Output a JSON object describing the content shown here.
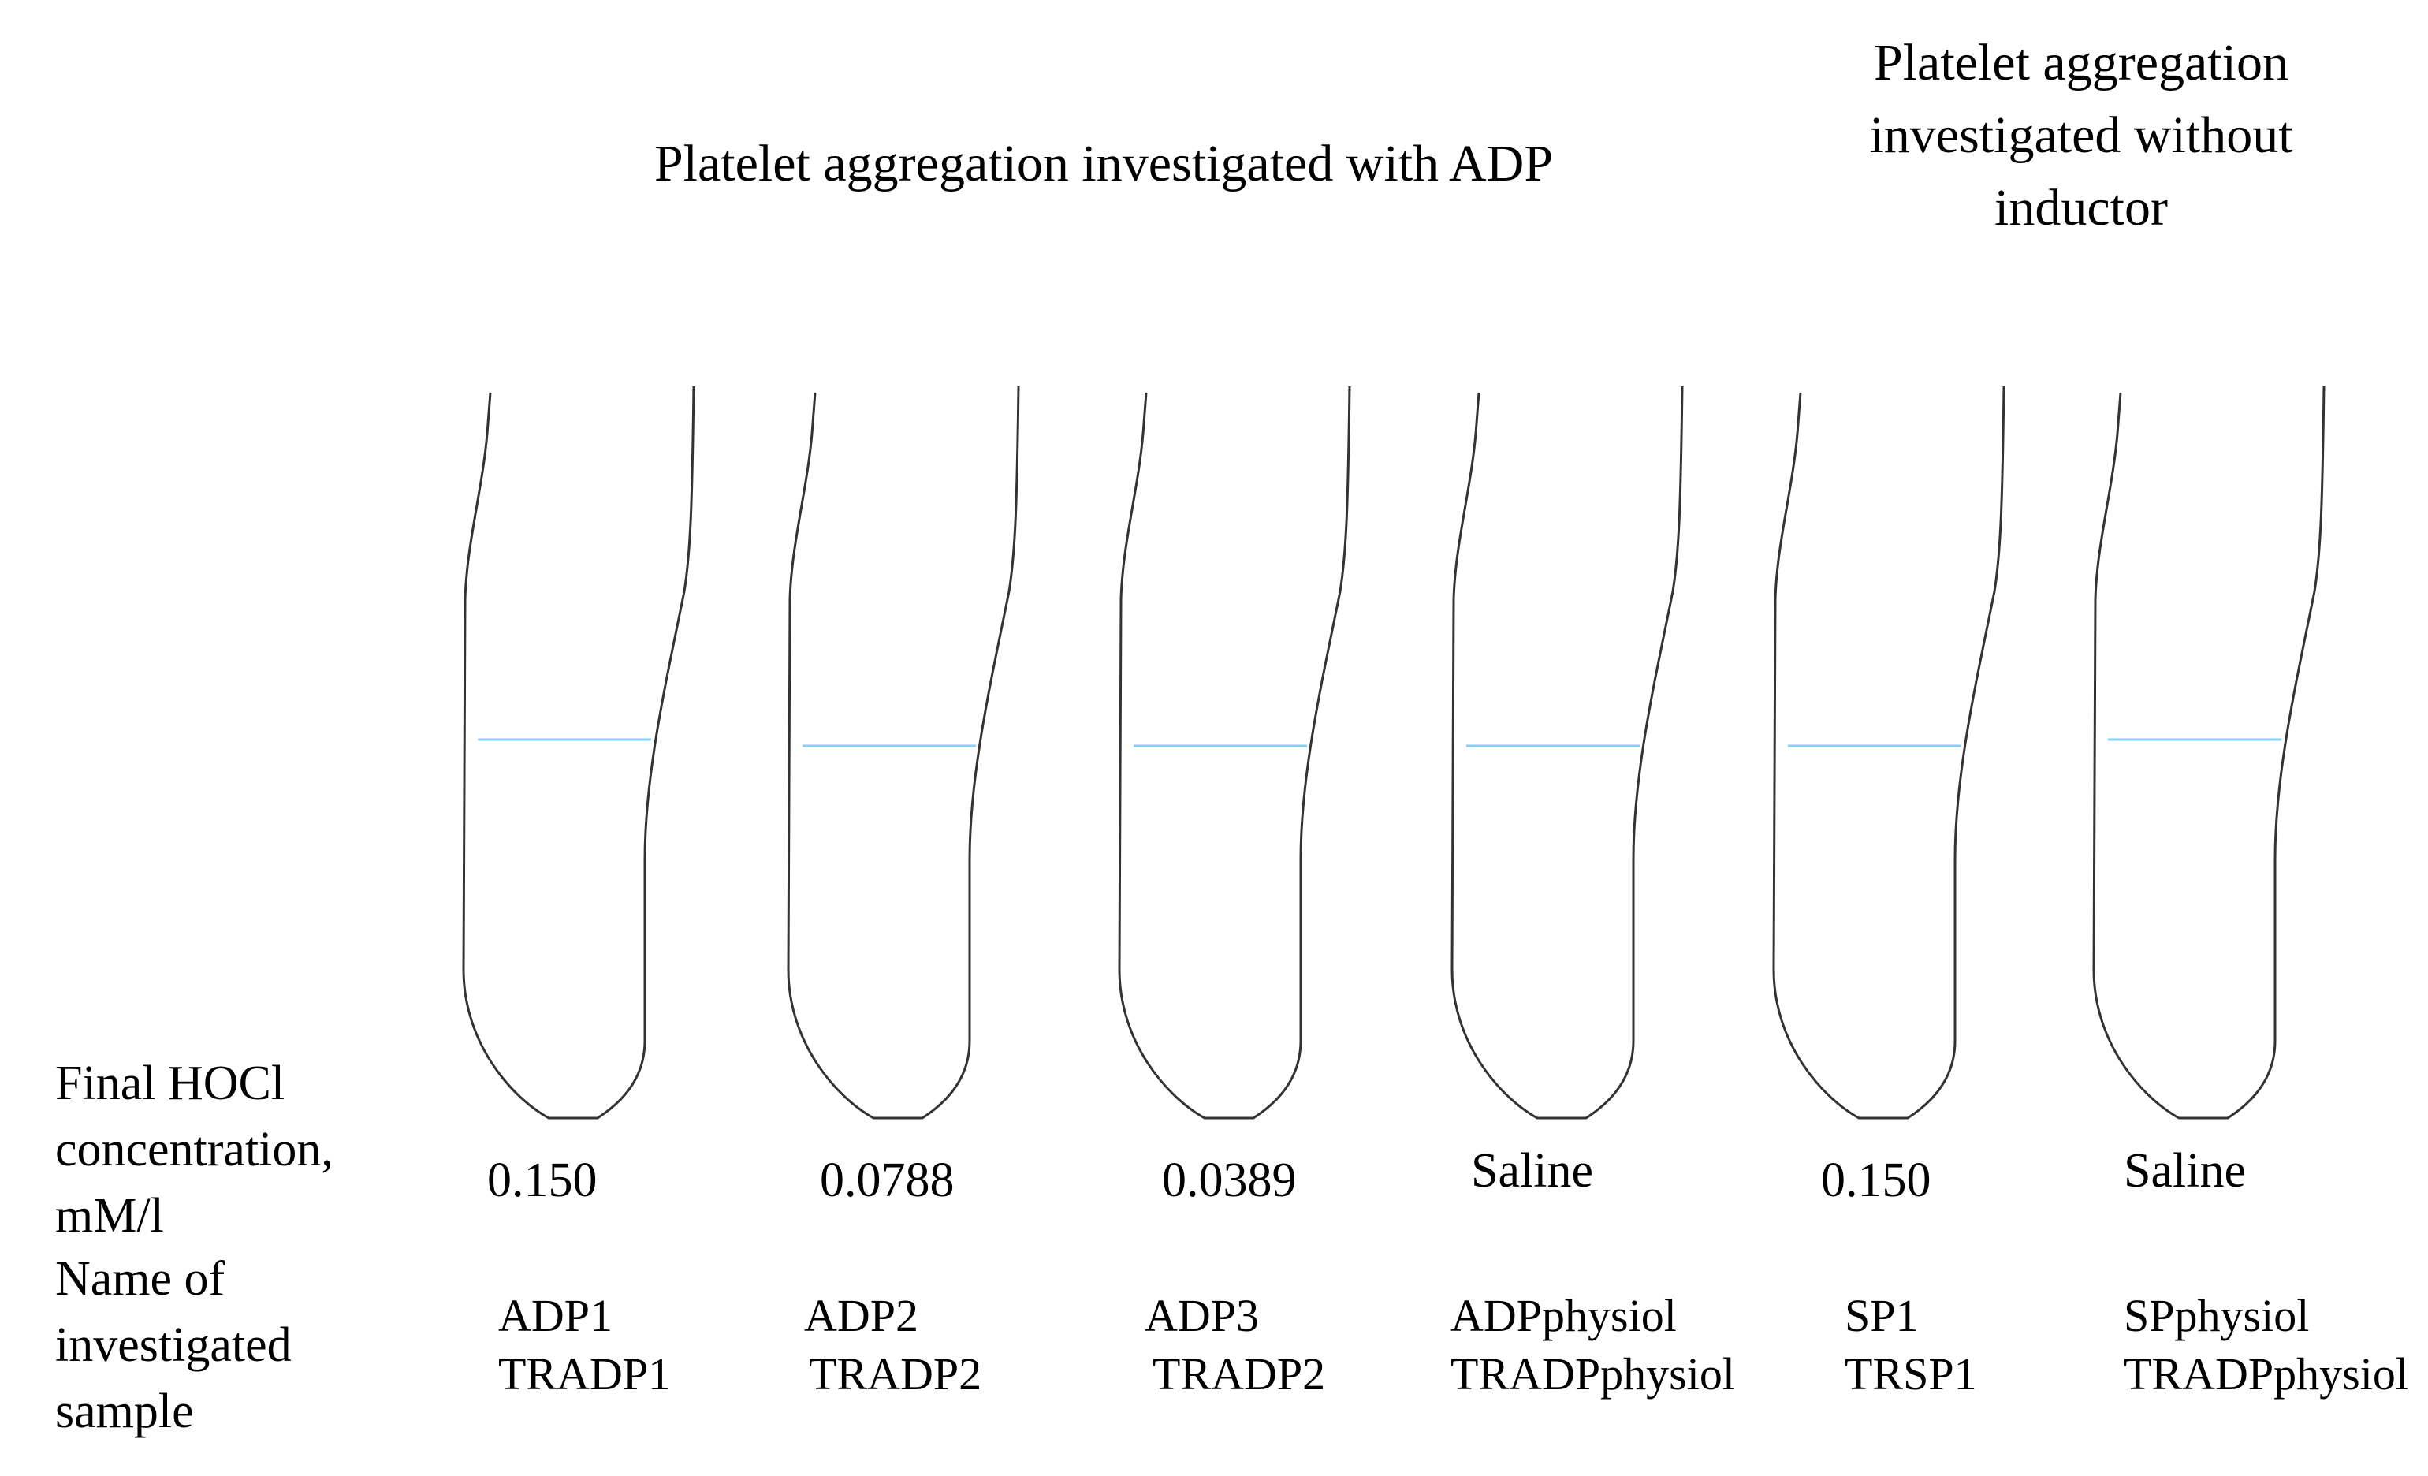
{
  "headers": {
    "with_adp": "Platelet aggregation investigated with ADP",
    "without_inductor": [
      "Platelet aggregation",
      "investigated without",
      "inductor"
    ]
  },
  "row_labels": {
    "concentration": [
      "Final HOCl",
      "concentration,",
      "mM/l"
    ],
    "sample_name": [
      "Name of",
      "investigated",
      "sample"
    ]
  },
  "tubes": [
    {
      "concentration": "0.150",
      "names": [
        "ADP1",
        "TRADP1"
      ]
    },
    {
      "concentration": "0.0788",
      "names": [
        "ADP2",
        "TRADP2"
      ]
    },
    {
      "concentration": "0.0389",
      "names": [
        "ADP3",
        "TRADP2"
      ]
    },
    {
      "concentration": "Saline",
      "names": [
        "ADPphysiol",
        "TRADPphysiol"
      ]
    },
    {
      "concentration": "0.150",
      "names": [
        "SP1",
        "TRSP1"
      ]
    },
    {
      "concentration": "Saline",
      "names": [
        "SPphysiol",
        "TRADPphysiol"
      ]
    }
  ],
  "colors": {
    "tube_outline": "#333333",
    "liquid_level": "#87cefa",
    "text": "#000000"
  }
}
